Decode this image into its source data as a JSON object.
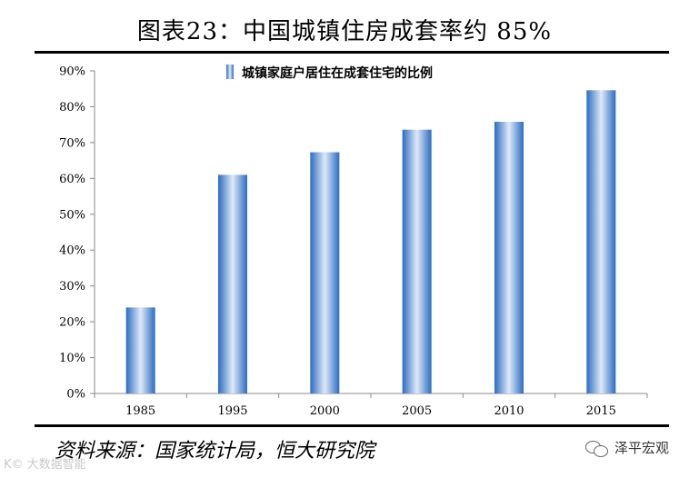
{
  "title": "图表23：中国城镇住房成套率约 85%",
  "source": "资料来源：国家统计局，恒大研究院",
  "brand": "泽平宏观",
  "watermark": "K© 大数据智能",
  "colors": {
    "bar_dark": "#2b6cc2",
    "bar_light": "#dfe9f7",
    "axis": "#888888"
  },
  "chart_data": {
    "type": "bar",
    "categories": [
      "1985",
      "1995",
      "2000",
      "2005",
      "2010",
      "2015"
    ],
    "series": [
      {
        "name": "城镇家庭户居住在成套住宅的比例",
        "values": [
          24,
          61,
          67.3,
          73.6,
          75.8,
          84.6
        ]
      }
    ],
    "ylim": [
      0,
      90
    ],
    "yticks": [
      "0%",
      "10%",
      "20%",
      "30%",
      "40%",
      "50%",
      "60%",
      "70%",
      "80%",
      "90%"
    ],
    "legend": "top-left",
    "grid": false
  }
}
